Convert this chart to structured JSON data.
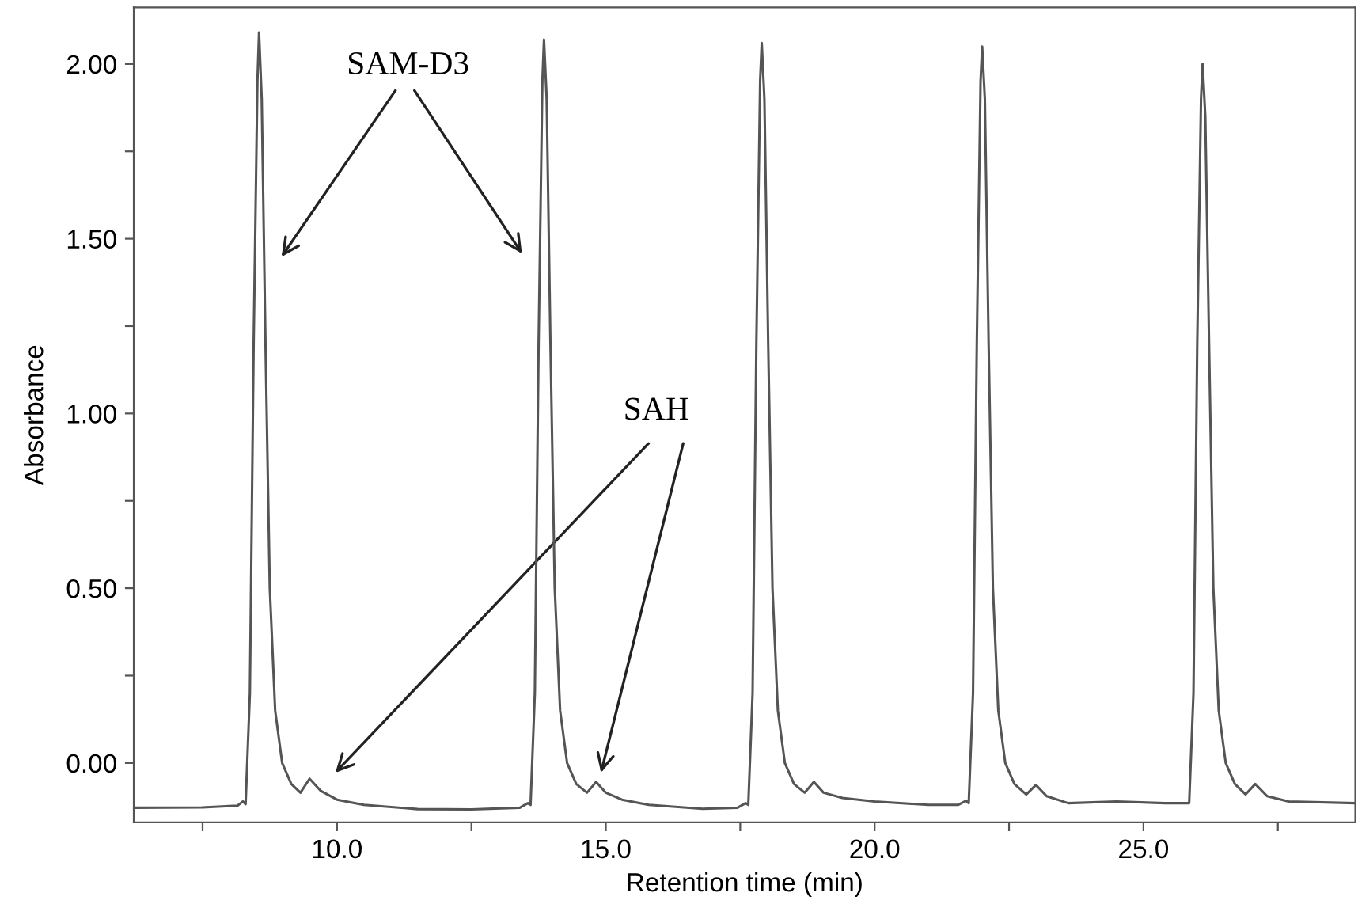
{
  "chart_data": {
    "type": "line",
    "xlabel": "Retention time (min)",
    "ylabel": "Absorbance",
    "xlim": [
      6.22,
      28.94
    ],
    "ylim": [
      -0.17,
      2.162
    ],
    "xticks": [
      {
        "value": 7.5,
        "label": null
      },
      {
        "value": 10,
        "label": "10.0"
      },
      {
        "value": 12.5,
        "label": null
      },
      {
        "value": 15,
        "label": "15.0"
      },
      {
        "value": 17.5,
        "label": null
      },
      {
        "value": 20,
        "label": "20.0"
      },
      {
        "value": 22.5,
        "label": null
      },
      {
        "value": 25,
        "label": "25.0"
      },
      {
        "value": 27.5,
        "label": null
      }
    ],
    "yticks": [
      {
        "value": 0,
        "label": "0.00"
      },
      {
        "value": 0.25,
        "label": null
      },
      {
        "value": 0.5,
        "label": "0.50"
      },
      {
        "value": 0.75,
        "label": null
      },
      {
        "value": 1,
        "label": "1.00"
      },
      {
        "value": 1.25,
        "label": null
      },
      {
        "value": 1.5,
        "label": "1.50"
      },
      {
        "value": 1.75,
        "label": null
      },
      {
        "value": 2,
        "label": "2.00"
      }
    ],
    "grid": false,
    "marker": "none",
    "line_style": "solid",
    "annotations": [
      "SAM-D3",
      "SAH"
    ],
    "series": [
      {
        "color": "#555555",
        "x": [
          6.22,
          7.5,
          8.15,
          8.25,
          8.3,
          8.38,
          8.45,
          8.52,
          8.55,
          8.6,
          8.67,
          8.75,
          8.85,
          8.98,
          9.15,
          9.32,
          9.49,
          9.7,
          10.0,
          10.5,
          11.5,
          12.5,
          13.4,
          13.55,
          13.6,
          13.68,
          13.75,
          13.82,
          13.85,
          13.9,
          13.97,
          14.05,
          14.15,
          14.28,
          14.45,
          14.65,
          14.82,
          15.0,
          15.3,
          15.8,
          16.8,
          17.45,
          17.6,
          17.65,
          17.73,
          17.8,
          17.87,
          17.9,
          17.95,
          18.02,
          18.1,
          18.2,
          18.33,
          18.5,
          18.7,
          18.87,
          19.05,
          19.4,
          20.0,
          21.0,
          21.55,
          21.7,
          21.75,
          21.83,
          21.9,
          21.97,
          22.0,
          22.05,
          22.12,
          22.2,
          22.3,
          22.43,
          22.6,
          22.82,
          23.0,
          23.2,
          23.6,
          24.5,
          25.4,
          25.85,
          25.93,
          26.0,
          26.07,
          26.1,
          26.15,
          26.22,
          26.3,
          26.4,
          26.53,
          26.7,
          26.9,
          27.08,
          27.3,
          27.7,
          28.94
        ],
        "values": [
          -0.128,
          -0.127,
          -0.122,
          -0.11,
          -0.118,
          0.2,
          1.2,
          1.95,
          2.09,
          1.9,
          1.2,
          0.5,
          0.15,
          0.0,
          -0.06,
          -0.085,
          -0.045,
          -0.08,
          -0.105,
          -0.12,
          -0.132,
          -0.133,
          -0.128,
          -0.115,
          -0.12,
          0.2,
          1.2,
          1.95,
          2.07,
          1.9,
          1.2,
          0.5,
          0.15,
          0.0,
          -0.06,
          -0.085,
          -0.054,
          -0.085,
          -0.105,
          -0.12,
          -0.131,
          -0.128,
          -0.115,
          -0.12,
          0.2,
          1.2,
          1.95,
          2.06,
          1.9,
          1.2,
          0.5,
          0.15,
          0.0,
          -0.06,
          -0.085,
          -0.054,
          -0.085,
          -0.1,
          -0.11,
          -0.12,
          -0.12,
          -0.108,
          -0.115,
          0.2,
          1.2,
          1.95,
          2.05,
          1.9,
          1.2,
          0.5,
          0.15,
          0.0,
          -0.06,
          -0.09,
          -0.063,
          -0.095,
          -0.115,
          -0.11,
          -0.115,
          -0.115,
          0.2,
          1.2,
          1.9,
          2.0,
          1.85,
          1.2,
          0.5,
          0.15,
          0.0,
          -0.06,
          -0.09,
          -0.06,
          -0.095,
          -0.11,
          -0.115
        ]
      }
    ]
  }
}
